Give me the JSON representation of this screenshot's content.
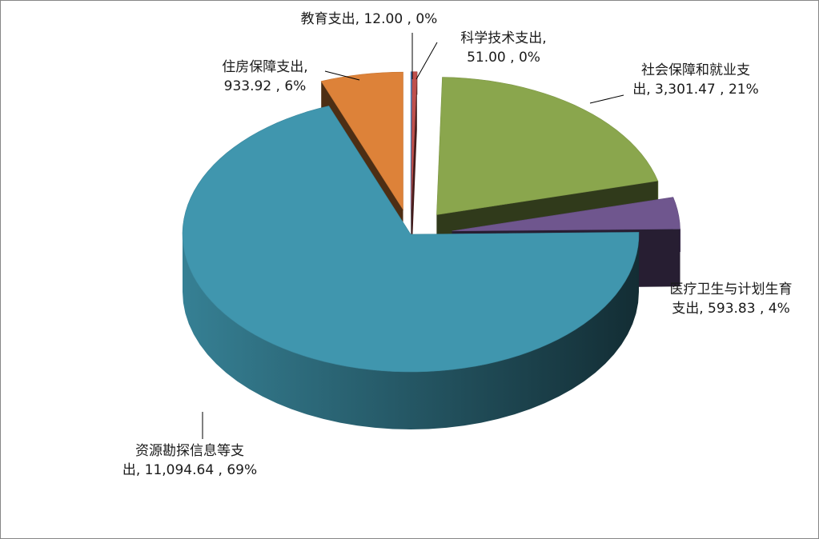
{
  "chart_data": {
    "type": "pie",
    "title": "",
    "categories": [
      "教育支出",
      "科学技术支出",
      "社会保障和就业支出",
      "医疗卫生与计划生育支出",
      "资源勘探信息等支出",
      "住房保障支出"
    ],
    "values": [
      12.0,
      51.0,
      3301.47,
      593.83,
      11094.64,
      933.92
    ],
    "labels": [
      [
        "教育支出, 12.00 , 0%"
      ],
      [
        "科学技术支出,",
        "51.00 , 0%"
      ],
      [
        "社会保障和就业支",
        "出, 3,301.47 , 21%"
      ],
      [
        "医疗卫生与计划生育",
        "支出, 593.83 , 4%"
      ],
      [
        "资源勘探信息等支",
        "出, 11,094.64 , 69%"
      ],
      [
        "住房保障支出,",
        "933.92 , 6%"
      ]
    ],
    "colors": [
      "#4f81bd",
      "#c0504d",
      "#8aa64d",
      "#6f568e",
      "#4096ae",
      "#dd8239"
    ],
    "style": "3d-exploded",
    "legend": "none"
  }
}
